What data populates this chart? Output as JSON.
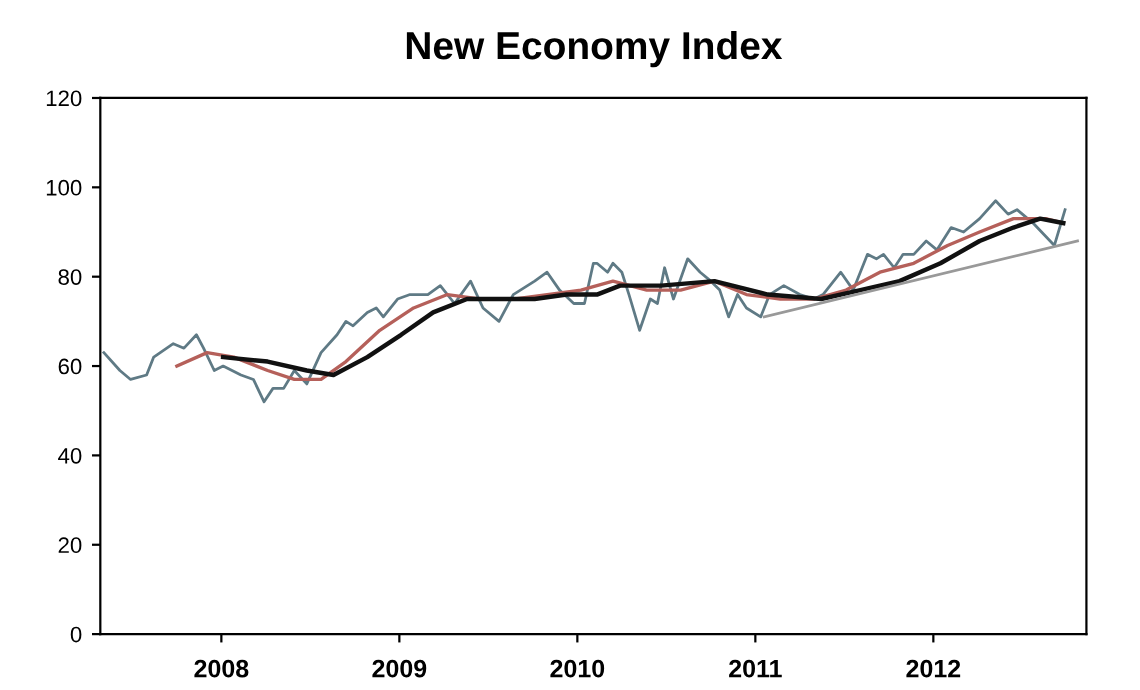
{
  "chart_data": {
    "type": "line",
    "title": "New Economy Index",
    "xlim": [
      2007.32,
      2012.86
    ],
    "xticks": [
      2008,
      2009,
      2010,
      2011,
      2012
    ],
    "ylim": [
      0,
      120
    ],
    "yticks": [
      0,
      20,
      40,
      60,
      80,
      100,
      120
    ],
    "grid": false,
    "legend": false,
    "series": [
      {
        "color": "#5f7a85",
        "x": [
          2007.34,
          2007.43,
          2007.49,
          2007.58,
          2007.62,
          2007.73,
          2007.79,
          2007.86,
          2007.9,
          2007.96,
          2008.01,
          2008.11,
          2008.18,
          2008.24,
          2008.29,
          2008.35,
          2008.41,
          2008.48,
          2008.56,
          2008.65,
          2008.7,
          2008.74,
          2008.82,
          2008.87,
          2008.91,
          2008.99,
          2009.06,
          2009.16,
          2009.23,
          2009.31,
          2009.4,
          2009.47,
          2009.56,
          2009.64,
          2009.76,
          2009.83,
          2009.9,
          2009.98,
          2010.04,
          2010.09,
          2010.11,
          2010.17,
          2010.2,
          2010.25,
          2010.29,
          2010.35,
          2010.41,
          2010.45,
          2010.49,
          2010.54,
          2010.62,
          2010.69,
          2010.75,
          2010.8,
          2010.85,
          2010.9,
          2010.95,
          2011.03,
          2011.08,
          2011.16,
          2011.25,
          2011.33,
          2011.38,
          2011.48,
          2011.55,
          2011.63,
          2011.68,
          2011.72,
          2011.78,
          2011.83,
          2011.89,
          2011.96,
          2012.02,
          2012.1,
          2012.17,
          2012.26,
          2012.35,
          2012.42,
          2012.47,
          2012.56,
          2012.68,
          2012.74
        ],
        "values": [
          63,
          59,
          57,
          58,
          62,
          65,
          64,
          67,
          64,
          59,
          60,
          58,
          57,
          52,
          55,
          55,
          59,
          56,
          63,
          67,
          70,
          69,
          72,
          73,
          71,
          75,
          76,
          76,
          78,
          74,
          79,
          73,
          70,
          76,
          79,
          81,
          77,
          74,
          74,
          83,
          83,
          81,
          83,
          81,
          76,
          68,
          75,
          74,
          82,
          75,
          84,
          81,
          79,
          77,
          71,
          76,
          73,
          71,
          76,
          78,
          76,
          75,
          76,
          81,
          77,
          85,
          84,
          85,
          82,
          85,
          85,
          88,
          86,
          91,
          90,
          93,
          97,
          94,
          95,
          92,
          87,
          95
        ]
      },
      {
        "color": "#b5605a",
        "x": [
          2007.75,
          2007.92,
          2008.07,
          2008.26,
          2008.41,
          2008.56,
          2008.7,
          2008.89,
          2009.08,
          2009.27,
          2009.46,
          2009.64,
          2009.83,
          2010.02,
          2010.2,
          2010.39,
          2010.58,
          2010.77,
          2010.95,
          2011.14,
          2011.33,
          2011.51,
          2011.7,
          2011.89,
          2012.08,
          2012.26,
          2012.45,
          2012.63,
          2012.73
        ],
        "values": [
          60,
          63,
          62,
          59,
          57,
          57,
          61,
          68,
          73,
          76,
          75,
          75,
          76,
          77,
          79,
          77,
          77,
          79,
          76,
          75,
          75,
          77,
          81,
          83,
          87,
          90,
          93,
          93,
          92
        ]
      },
      {
        "color": "#111111",
        "x": [
          2008.01,
          2008.26,
          2008.48,
          2008.63,
          2008.82,
          2009.01,
          2009.19,
          2009.38,
          2009.57,
          2009.76,
          2009.94,
          2010.11,
          2010.24,
          2010.47,
          2010.77,
          2011.07,
          2011.37,
          2011.59,
          2011.81,
          2012.04,
          2012.26,
          2012.45,
          2012.6,
          2012.73
        ],
        "values": [
          62,
          61,
          59,
          58,
          62,
          67,
          72,
          75,
          75,
          75,
          76,
          76,
          78,
          78,
          79,
          76,
          75,
          77,
          79,
          83,
          88,
          91,
          93,
          92
        ]
      },
      {
        "color": "#999999",
        "x": [
          2011.05,
          2012.81
        ],
        "values": [
          71,
          88
        ]
      }
    ]
  }
}
